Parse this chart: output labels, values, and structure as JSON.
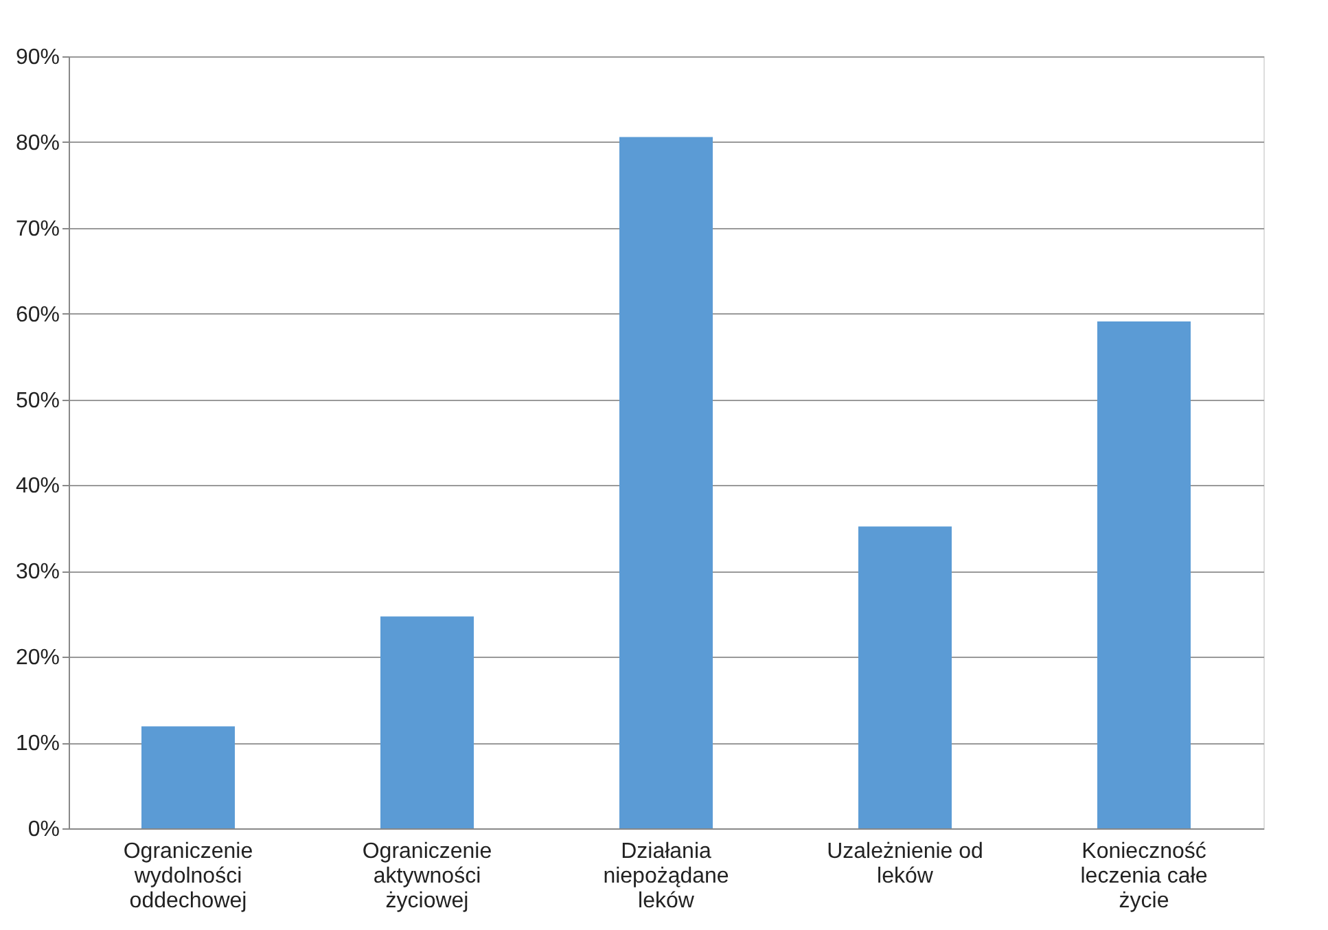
{
  "chart_data": {
    "type": "bar",
    "categories": [
      "Ograniczenie wydolności oddechowej",
      "Ograniczenie aktywności życiowej",
      "Działania niepożądane leków",
      "Uzależnienie od leków",
      "Konieczność leczenia całe życie"
    ],
    "values": [
      0.119,
      0.247,
      0.806,
      0.352,
      0.591
    ],
    "color": "#5b9bd5",
    "ylim": [
      0,
      0.9
    ],
    "yticks": [
      {
        "value": 0,
        "label": "0%"
      },
      {
        "value": 0.1,
        "label": "10%"
      },
      {
        "value": 0.2,
        "label": "20%"
      },
      {
        "value": 0.3,
        "label": "30%"
      },
      {
        "value": 0.4,
        "label": "40%"
      },
      {
        "value": 0.5,
        "label": "50%"
      },
      {
        "value": 0.6,
        "label": "60%"
      },
      {
        "value": 0.7,
        "label": "70%"
      },
      {
        "value": 0.8,
        "label": "80%"
      },
      {
        "value": 0.9,
        "label": "90%"
      }
    ],
    "grid": "y"
  }
}
